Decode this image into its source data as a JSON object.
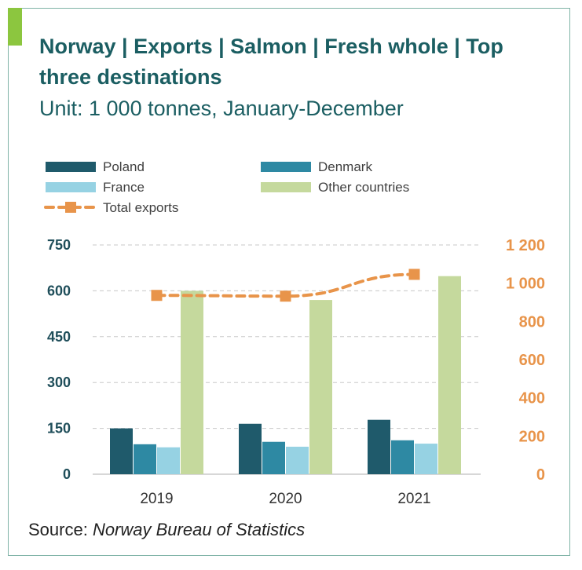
{
  "header": {
    "title": "Norway | Exports | Salmon | Fresh whole | Top three destinations",
    "subtitle": "Unit: 1 000 tonnes, January-December"
  },
  "footer": {
    "source_label": "Source: ",
    "source_name": "Norway Bureau of Statistics"
  },
  "colors": {
    "poland": "#1f5a6b",
    "denmark": "#2e89a3",
    "france": "#96d2e3",
    "other": "#c5d99d",
    "total": "#e8944a",
    "grid": "#c8c8c8",
    "frame": "#7fb3a6",
    "accent": "#8cc63f"
  },
  "chart_data": {
    "type": "bar",
    "categories": [
      "2019",
      "2020",
      "2021"
    ],
    "series": [
      {
        "name": "Poland",
        "type": "bar",
        "values": [
          150,
          165,
          178
        ]
      },
      {
        "name": "Denmark",
        "type": "bar",
        "values": [
          98,
          106,
          111
        ]
      },
      {
        "name": "France",
        "type": "bar",
        "values": [
          88,
          90,
          100
        ]
      },
      {
        "name": "Other countries",
        "type": "bar",
        "values": [
          600,
          570,
          648
        ]
      },
      {
        "name": "Total exports",
        "type": "line",
        "axis": "right",
        "values": [
          936,
          932,
          1046
        ]
      }
    ],
    "y_left": {
      "range": [
        0,
        750
      ],
      "ticks": [
        0,
        150,
        300,
        450,
        600,
        750
      ],
      "tick_labels": [
        "0",
        "150",
        "300",
        "450",
        "600",
        "750"
      ]
    },
    "y_right": {
      "range": [
        0,
        1200
      ],
      "ticks": [
        0,
        200,
        400,
        600,
        800,
        1000,
        1200
      ],
      "tick_labels": [
        "0",
        "200",
        "400",
        "600",
        "800",
        "1 000",
        "1 200"
      ]
    },
    "grid": true,
    "legend_position": "top-left"
  }
}
